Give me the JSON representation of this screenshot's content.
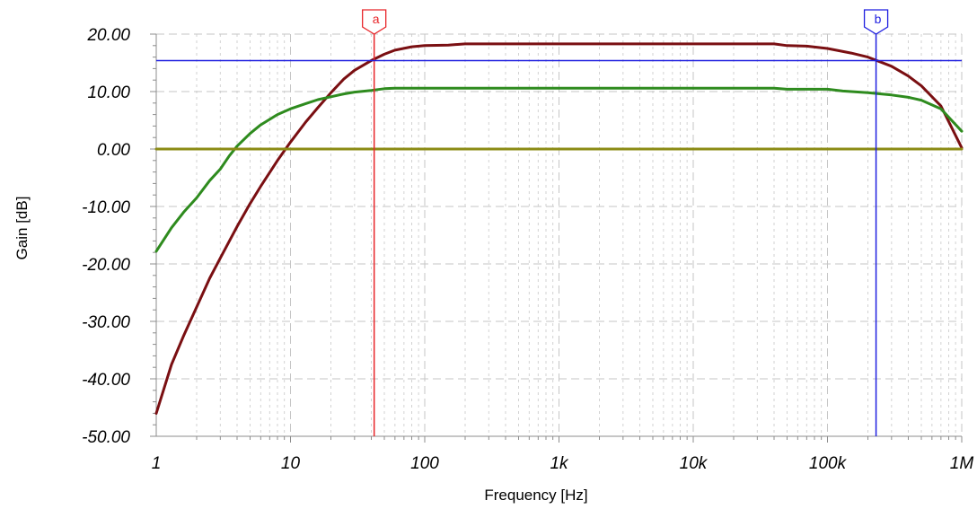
{
  "chart_data": {
    "type": "line",
    "xlabel": "Frequency [Hz]",
    "ylabel": "Gain [dB]",
    "x_scale": "log",
    "xlim": [
      1,
      1000000
    ],
    "ylim": [
      -50,
      20
    ],
    "x_ticks": [
      {
        "value": 1,
        "label": "1"
      },
      {
        "value": 10,
        "label": "10"
      },
      {
        "value": 100,
        "label": "100"
      },
      {
        "value": 1000,
        "label": "1k"
      },
      {
        "value": 10000,
        "label": "10k"
      },
      {
        "value": 100000,
        "label": "100k"
      },
      {
        "value": 1000000,
        "label": "1M"
      }
    ],
    "y_ticks": [
      {
        "value": 20,
        "label": "20.00"
      },
      {
        "value": 10,
        "label": "10.00"
      },
      {
        "value": 0,
        "label": "0.00"
      },
      {
        "value": -10,
        "label": "-10.00"
      },
      {
        "value": -20,
        "label": "-20.00"
      },
      {
        "value": -30,
        "label": "-30.00"
      },
      {
        "value": -40,
        "label": "-40.00"
      },
      {
        "value": -50,
        "label": "-50.00"
      }
    ],
    "grid": true,
    "series": [
      {
        "color": "#7a0f12",
        "x": [
          1,
          1.3,
          1.6,
          2,
          2.5,
          3,
          4,
          5,
          6,
          8,
          10,
          13,
          16,
          20,
          25,
          30,
          40,
          50,
          60,
          80,
          100,
          150,
          200,
          300,
          1000,
          10000,
          40000,
          50000,
          70000,
          100000,
          150000,
          200000,
          300000,
          400000,
          500000,
          700000,
          1000000
        ],
        "y": [
          -46.0,
          -37.5,
          -32.5,
          -27.5,
          -22.5,
          -19.0,
          -13.5,
          -9.5,
          -6.5,
          -2.0,
          1.2,
          4.7,
          7.2,
          9.8,
          12.2,
          13.7,
          15.4,
          16.5,
          17.2,
          17.8,
          18.0,
          18.1,
          18.3,
          18.3,
          18.3,
          18.3,
          18.3,
          18.0,
          17.9,
          17.5,
          16.7,
          16.0,
          14.4,
          12.7,
          11.0,
          7.5,
          0.2
        ]
      },
      {
        "color": "#2e8b1e",
        "x": [
          1,
          1.3,
          1.6,
          2,
          2.5,
          3,
          3.5,
          4,
          5,
          6,
          8,
          10,
          13,
          16,
          20,
          25,
          30,
          40,
          50,
          60,
          70,
          100,
          1000,
          10000,
          40000,
          50000,
          100000,
          130000,
          200000,
          300000,
          400000,
          500000,
          700000,
          1000000
        ],
        "y": [
          -17.8,
          -13.7,
          -11.0,
          -8.5,
          -5.5,
          -3.5,
          -1.2,
          0.5,
          2.7,
          4.2,
          6.0,
          7.0,
          7.9,
          8.6,
          9.1,
          9.6,
          9.9,
          10.2,
          10.5,
          10.6,
          10.6,
          10.6,
          10.6,
          10.6,
          10.6,
          10.4,
          10.4,
          10.1,
          9.8,
          9.4,
          9.0,
          8.5,
          7.0,
          3.1
        ]
      },
      {
        "color": "#8b8b14",
        "x": [
          1,
          1000000
        ],
        "y": [
          0,
          0
        ]
      }
    ],
    "cursors": [
      {
        "label": "a",
        "orientation": "vertical",
        "x": 42,
        "color": "#e8262a"
      },
      {
        "label": "b",
        "orientation": "vertical",
        "x": 230000,
        "color": "#1f1fe0"
      },
      {
        "orientation": "horizontal",
        "y": 15.4,
        "color": "#1f1fe0"
      }
    ]
  }
}
